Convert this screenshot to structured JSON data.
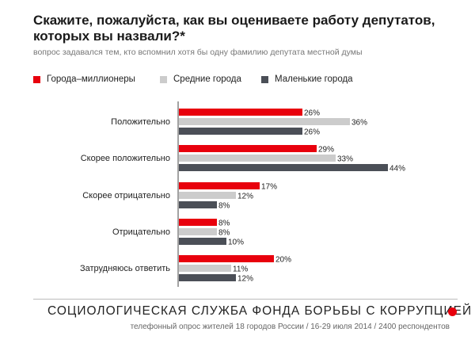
{
  "header": {
    "title": "Скажите, пожалуйста, как вы оцениваете работу депутатов, которых вы назвали?*",
    "subtitle": "вопрос задавался тем, кто вспомнил хотя бы одну фамилию депутата местной думы"
  },
  "colors": {
    "series_1": "#e8000d",
    "series_2": "#cccccc",
    "series_3": "#4b4f57",
    "axis": "#444444",
    "footer_dot": "#e8000d"
  },
  "chart_data": {
    "type": "bar",
    "orientation": "horizontal",
    "categories": [
      "Положительно",
      "Скорее положительно",
      "Скорее отрицательно",
      "Отрицательно",
      "Затрудняюсь ответить"
    ],
    "series": [
      {
        "name": "Города–миллионеры",
        "values": [
          26,
          29,
          17,
          8,
          20
        ]
      },
      {
        "name": "Средние города",
        "values": [
          36,
          33,
          12,
          8,
          11
        ]
      },
      {
        "name": "Маленькие города",
        "values": [
          26,
          44,
          8,
          10,
          12
        ]
      }
    ],
    "value_suffix": "%",
    "legend_position": "top-left",
    "grid": false,
    "xlim": [
      0,
      44
    ]
  },
  "footer": {
    "title": "СОЦИОЛОГИЧЕСКАЯ СЛУЖБА ФОНДА БОРЬБЫ С КОРРУПЦИЕЙ",
    "note": "телефонный опрос жителей 18 городов России / 16-29 июля 2014 / 2400 респондентов"
  }
}
